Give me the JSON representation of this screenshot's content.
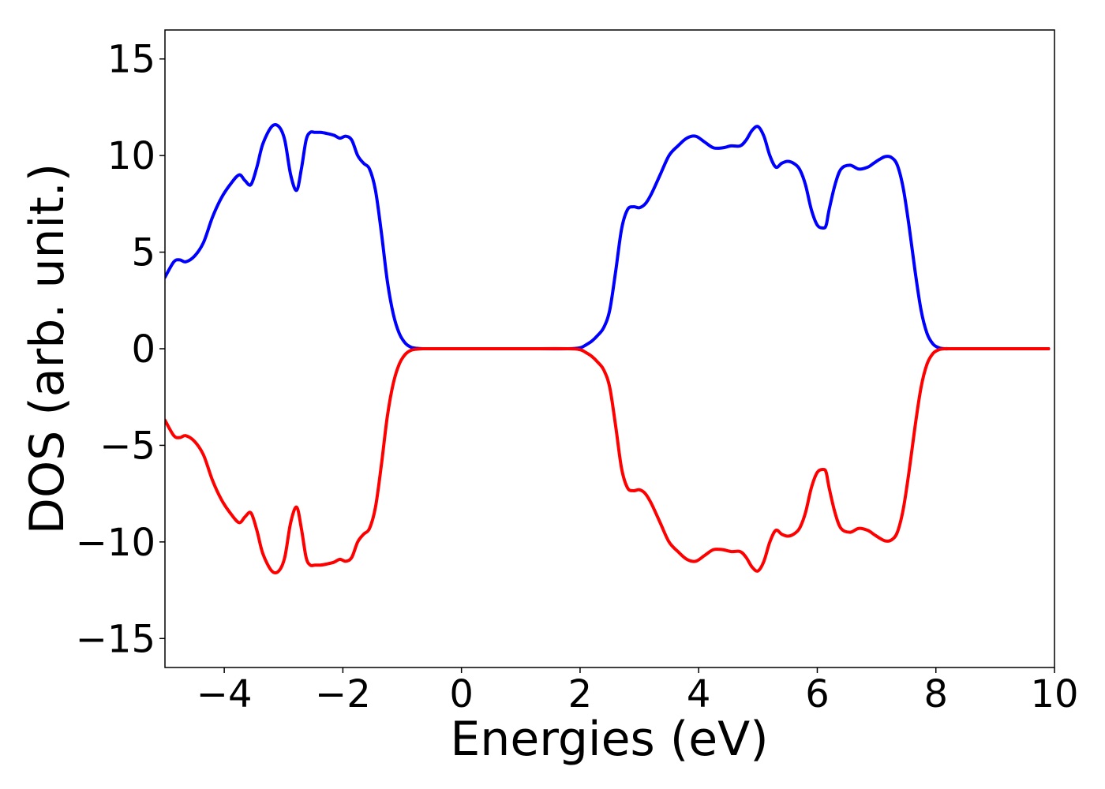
{
  "chart_data": {
    "type": "line",
    "title": "",
    "xlabel": "Energies (eV)",
    "ylabel": "DOS (arb. unit.)",
    "xlim": [
      -5,
      10
    ],
    "ylim": [
      -16.5,
      16.5
    ],
    "grid": false,
    "x_ticks": [
      {
        "value": -4,
        "label": "−4"
      },
      {
        "value": -2,
        "label": "−2"
      },
      {
        "value": 0,
        "label": "0"
      },
      {
        "value": 2,
        "label": "2"
      },
      {
        "value": 4,
        "label": "4"
      },
      {
        "value": 6,
        "label": "6"
      },
      {
        "value": 8,
        "label": "8"
      },
      {
        "value": 10,
        "label": "10"
      }
    ],
    "y_ticks": [
      {
        "value": 15,
        "label": "15"
      },
      {
        "value": 10,
        "label": "10"
      },
      {
        "value": 5,
        "label": "5"
      },
      {
        "value": 0,
        "label": "0"
      },
      {
        "value": -5,
        "label": "−5"
      },
      {
        "value": -10,
        "label": "−10"
      },
      {
        "value": -15,
        "label": "−15"
      }
    ],
    "series": [
      {
        "color": "#0000ff",
        "x": [
          -5.0,
          -4.85,
          -4.75,
          -4.65,
          -4.5,
          -4.35,
          -4.2,
          -4.05,
          -3.9,
          -3.75,
          -3.65,
          -3.55,
          -3.45,
          -3.35,
          -3.2,
          -3.08,
          -2.98,
          -2.88,
          -2.78,
          -2.7,
          -2.62,
          -2.55,
          -2.47,
          -2.38,
          -2.28,
          -2.15,
          -2.05,
          -1.95,
          -1.85,
          -1.75,
          -1.65,
          -1.55,
          -1.45,
          -1.35,
          -1.25,
          -1.15,
          -1.05,
          -0.95,
          -0.85,
          -0.75,
          -0.65,
          -0.55,
          -0.45,
          0.0,
          1.0,
          1.8,
          2.0,
          2.1,
          2.2,
          2.3,
          2.4,
          2.5,
          2.6,
          2.7,
          2.8,
          2.9,
          3.0,
          3.1,
          3.2,
          3.35,
          3.5,
          3.65,
          3.8,
          3.95,
          4.1,
          4.25,
          4.4,
          4.55,
          4.7,
          4.8,
          4.9,
          5.0,
          5.1,
          5.2,
          5.3,
          5.4,
          5.5,
          5.6,
          5.7,
          5.8,
          5.9,
          6.0,
          6.1,
          6.15,
          6.2,
          6.3,
          6.4,
          6.55,
          6.7,
          6.85,
          6.95,
          7.05,
          7.15,
          7.25,
          7.35,
          7.45,
          7.55,
          7.65,
          7.75,
          7.85,
          7.95,
          8.05,
          8.15,
          8.25,
          8.4,
          9.0,
          9.9
        ],
        "values": [
          3.7,
          4.5,
          4.6,
          4.5,
          4.8,
          5.5,
          6.8,
          7.8,
          8.5,
          9.0,
          8.7,
          8.5,
          9.4,
          10.6,
          11.5,
          11.5,
          10.8,
          9.0,
          8.2,
          9.3,
          10.8,
          11.2,
          11.2,
          11.2,
          11.15,
          11.05,
          10.9,
          11.0,
          10.8,
          10.0,
          9.6,
          9.3,
          8.2,
          6.0,
          3.5,
          1.8,
          0.8,
          0.3,
          0.08,
          0.02,
          0.0,
          0.0,
          0.0,
          0.0,
          0.0,
          0.0,
          0.05,
          0.2,
          0.4,
          0.7,
          1.1,
          2.0,
          4.0,
          6.2,
          7.2,
          7.35,
          7.3,
          7.5,
          8.0,
          9.0,
          10.0,
          10.5,
          10.9,
          11.0,
          10.7,
          10.4,
          10.4,
          10.5,
          10.5,
          10.8,
          11.3,
          11.5,
          11.0,
          10.0,
          9.4,
          9.6,
          9.7,
          9.6,
          9.3,
          8.5,
          7.2,
          6.4,
          6.25,
          6.4,
          7.2,
          8.5,
          9.3,
          9.5,
          9.3,
          9.4,
          9.6,
          9.8,
          9.95,
          9.9,
          9.5,
          8.3,
          6.3,
          4.0,
          2.0,
          0.8,
          0.25,
          0.05,
          0.0,
          0.0,
          0.0,
          0.0,
          0.0
        ]
      },
      {
        "color": "#ff0000",
        "x": [
          -5.0,
          -4.85,
          -4.75,
          -4.65,
          -4.5,
          -4.35,
          -4.2,
          -4.05,
          -3.9,
          -3.75,
          -3.65,
          -3.55,
          -3.45,
          -3.35,
          -3.2,
          -3.08,
          -2.98,
          -2.88,
          -2.78,
          -2.7,
          -2.62,
          -2.55,
          -2.47,
          -2.38,
          -2.28,
          -2.15,
          -2.05,
          -1.95,
          -1.85,
          -1.75,
          -1.65,
          -1.55,
          -1.45,
          -1.35,
          -1.25,
          -1.15,
          -1.05,
          -0.95,
          -0.85,
          -0.75,
          -0.65,
          -0.55,
          -0.45,
          0.0,
          1.0,
          1.8,
          2.0,
          2.1,
          2.2,
          2.3,
          2.4,
          2.5,
          2.6,
          2.7,
          2.8,
          2.9,
          3.0,
          3.1,
          3.2,
          3.35,
          3.5,
          3.65,
          3.8,
          3.95,
          4.1,
          4.25,
          4.4,
          4.55,
          4.7,
          4.8,
          4.9,
          5.0,
          5.1,
          5.2,
          5.3,
          5.4,
          5.5,
          5.6,
          5.7,
          5.8,
          5.9,
          6.0,
          6.1,
          6.15,
          6.2,
          6.3,
          6.4,
          6.55,
          6.7,
          6.85,
          6.95,
          7.05,
          7.15,
          7.25,
          7.35,
          7.45,
          7.55,
          7.65,
          7.75,
          7.85,
          7.95,
          8.05,
          8.15,
          8.25,
          8.4,
          9.0,
          9.9
        ],
        "values": [
          -3.7,
          -4.5,
          -4.6,
          -4.5,
          -4.8,
          -5.5,
          -6.8,
          -7.8,
          -8.5,
          -9.0,
          -8.7,
          -8.5,
          -9.4,
          -10.6,
          -11.5,
          -11.5,
          -10.8,
          -9.0,
          -8.2,
          -9.3,
          -10.8,
          -11.2,
          -11.2,
          -11.2,
          -11.15,
          -11.05,
          -10.9,
          -11.0,
          -10.8,
          -10.0,
          -9.6,
          -9.3,
          -8.2,
          -6.0,
          -3.5,
          -1.8,
          -0.8,
          -0.3,
          -0.08,
          -0.02,
          0.0,
          0.0,
          0.0,
          0.0,
          0.0,
          0.0,
          -0.05,
          -0.2,
          -0.4,
          -0.7,
          -1.1,
          -2.0,
          -4.0,
          -6.2,
          -7.2,
          -7.35,
          -7.3,
          -7.5,
          -8.0,
          -9.0,
          -10.0,
          -10.5,
          -10.9,
          -11.0,
          -10.7,
          -10.4,
          -10.4,
          -10.5,
          -10.5,
          -10.8,
          -11.3,
          -11.5,
          -11.0,
          -10.0,
          -9.4,
          -9.6,
          -9.7,
          -9.6,
          -9.3,
          -8.5,
          -7.2,
          -6.4,
          -6.25,
          -6.4,
          -7.2,
          -8.5,
          -9.3,
          -9.5,
          -9.3,
          -9.4,
          -9.6,
          -9.8,
          -9.95,
          -9.9,
          -9.5,
          -8.3,
          -6.3,
          -4.0,
          -2.0,
          -0.8,
          -0.25,
          -0.05,
          0.0,
          0.0,
          0.0,
          0.0,
          0.0
        ]
      }
    ]
  }
}
